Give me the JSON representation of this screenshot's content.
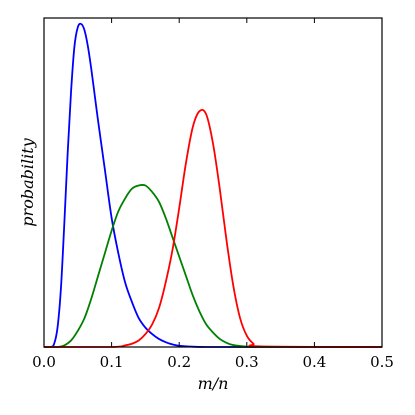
{
  "chart_data": {
    "type": "line",
    "xlabel": "m/n",
    "ylabel": "probability",
    "xlim": [
      0.0,
      0.5
    ],
    "ylim": [
      0,
      1.0
    ],
    "xticks": [
      "0.0",
      "0.1",
      "0.2",
      "0.3",
      "0.4",
      "0.5"
    ],
    "yticks_shown": false,
    "grid": false,
    "series": [
      {
        "color": "#0000ff",
        "x": [
          0.0,
          0.01,
          0.015,
          0.02,
          0.025,
          0.03,
          0.035,
          0.04,
          0.045,
          0.05,
          0.055,
          0.06,
          0.065,
          0.07,
          0.075,
          0.08,
          0.09,
          0.1,
          0.11,
          0.12,
          0.13,
          0.14,
          0.15,
          0.16,
          0.17,
          0.18,
          0.19,
          0.2,
          0.22,
          0.24,
          0.26,
          0.5
        ],
        "y": [
          0.0,
          0.0,
          0.01,
          0.06,
          0.18,
          0.38,
          0.6,
          0.79,
          0.93,
          0.99,
          1.0,
          0.98,
          0.93,
          0.86,
          0.78,
          0.7,
          0.55,
          0.4,
          0.29,
          0.2,
          0.14,
          0.09,
          0.06,
          0.04,
          0.025,
          0.015,
          0.008,
          0.004,
          0.001,
          0.0,
          0.0,
          0.0
        ]
      },
      {
        "color": "#008000",
        "x": [
          0.0,
          0.02,
          0.03,
          0.04,
          0.05,
          0.06,
          0.07,
          0.08,
          0.09,
          0.1,
          0.11,
          0.12,
          0.13,
          0.14,
          0.15,
          0.16,
          0.17,
          0.18,
          0.19,
          0.2,
          0.21,
          0.22,
          0.23,
          0.24,
          0.25,
          0.26,
          0.27,
          0.28,
          0.3,
          0.32,
          0.5
        ],
        "y": [
          0.0,
          0.0,
          0.005,
          0.02,
          0.05,
          0.09,
          0.15,
          0.22,
          0.29,
          0.36,
          0.42,
          0.46,
          0.49,
          0.5,
          0.5,
          0.48,
          0.45,
          0.4,
          0.34,
          0.28,
          0.22,
          0.16,
          0.11,
          0.07,
          0.045,
          0.025,
          0.013,
          0.006,
          0.001,
          0.0,
          0.0
        ]
      },
      {
        "color": "#ff0000",
        "x": [
          0.0,
          0.1,
          0.12,
          0.13,
          0.14,
          0.15,
          0.16,
          0.17,
          0.18,
          0.19,
          0.2,
          0.21,
          0.22,
          0.23,
          0.24,
          0.25,
          0.26,
          0.27,
          0.28,
          0.29,
          0.3,
          0.31,
          0.32,
          0.5
        ],
        "y": [
          0.0,
          0.0,
          0.005,
          0.01,
          0.02,
          0.04,
          0.07,
          0.12,
          0.2,
          0.3,
          0.43,
          0.57,
          0.68,
          0.73,
          0.72,
          0.63,
          0.49,
          0.33,
          0.19,
          0.09,
          0.035,
          0.01,
          0.002,
          0.0
        ]
      }
    ]
  }
}
